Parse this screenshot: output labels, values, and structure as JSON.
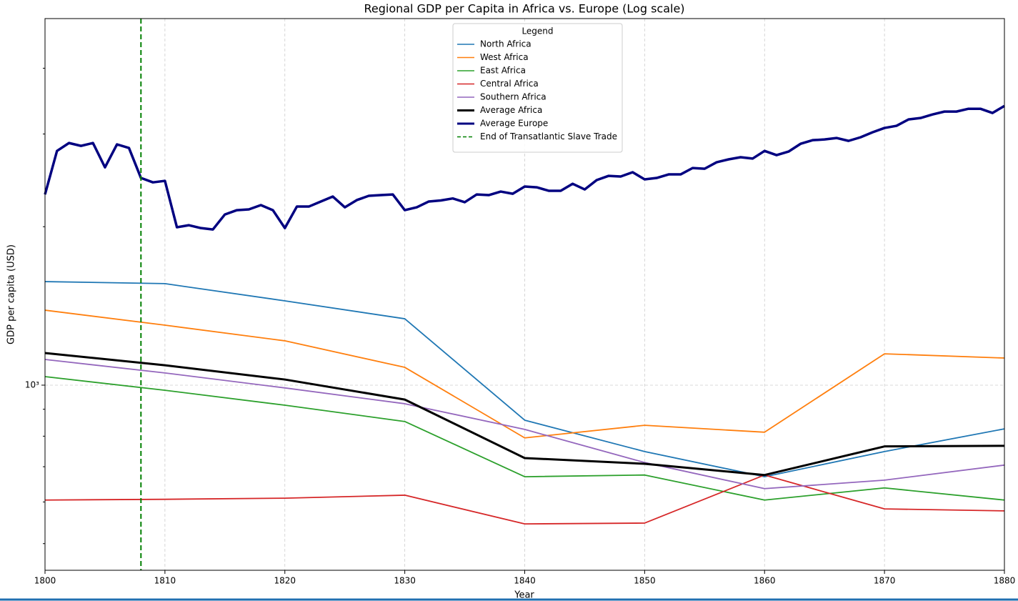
{
  "chart_data": {
    "type": "line",
    "title": "Regional GDP per Capita in Africa vs. Europe (Log scale)",
    "xlabel": "Year",
    "ylabel": "GDP per capita (USD)",
    "xlim": [
      1800,
      1880
    ],
    "xticks": [
      1800,
      1810,
      1820,
      1830,
      1840,
      1850,
      1860,
      1870,
      1880
    ],
    "ylim": [
      445,
      4970
    ],
    "yticks": [
      {
        "value": 1000,
        "label": "10³"
      }
    ],
    "yminor_ticks": [
      500,
      600,
      700,
      800,
      900,
      2000,
      3000,
      4000
    ],
    "log_y": true,
    "grid": true,
    "legend_title": "Legend",
    "legend_position": "upper center",
    "series": [
      {
        "name": "North Africa",
        "color": "#1f77b4",
        "width": 1.8,
        "x": [
          1800,
          1810,
          1820,
          1830,
          1840,
          1850,
          1860,
          1870,
          1880
        ],
        "values": [
          1573,
          1559,
          1446,
          1337,
          858,
          748,
          670,
          748,
          826
        ]
      },
      {
        "name": "West Africa",
        "color": "#ff7f0e",
        "width": 1.8,
        "x": [
          1800,
          1810,
          1820,
          1830,
          1840,
          1850,
          1860,
          1870,
          1880
        ],
        "values": [
          1388,
          1300,
          1214,
          1081,
          794,
          839,
          814,
          1147,
          1126
        ]
      },
      {
        "name": "East Africa",
        "color": "#2ca02c",
        "width": 1.8,
        "x": [
          1800,
          1810,
          1820,
          1830,
          1840,
          1850,
          1860,
          1870,
          1880
        ],
        "values": [
          1038,
          978,
          916,
          853,
          670,
          675,
          605,
          638,
          605
        ]
      },
      {
        "name": "Central Africa",
        "color": "#d62728",
        "width": 1.8,
        "x": [
          1800,
          1810,
          1820,
          1830,
          1840,
          1850,
          1860,
          1870,
          1880
        ],
        "values": [
          605,
          607,
          610,
          618,
          545,
          547,
          675,
          582,
          577
        ]
      },
      {
        "name": "Southern Africa",
        "color": "#9467bd",
        "width": 1.8,
        "x": [
          1800,
          1810,
          1820,
          1830,
          1840,
          1850,
          1860,
          1870,
          1880
        ],
        "values": [
          1119,
          1055,
          988,
          922,
          824,
          713,
          636,
          660,
          705
        ]
      },
      {
        "name": "Average Africa",
        "color": "#000000",
        "width": 3,
        "x": [
          1800,
          1810,
          1820,
          1830,
          1840,
          1850,
          1860,
          1870,
          1880
        ],
        "values": [
          1151,
          1091,
          1025,
          939,
          727,
          709,
          675,
          765,
          767
        ]
      },
      {
        "name": "Average Europe",
        "color": "#000080",
        "width": 3.5,
        "x": [
          1800,
          1801,
          1802,
          1803,
          1804,
          1805,
          1806,
          1807,
          1808,
          1809,
          1810,
          1811,
          1812,
          1813,
          1814,
          1815,
          1816,
          1817,
          1818,
          1819,
          1820,
          1821,
          1822,
          1823,
          1824,
          1825,
          1826,
          1827,
          1828,
          1829,
          1830,
          1831,
          1832,
          1833,
          1834,
          1835,
          1836,
          1837,
          1838,
          1839,
          1840,
          1841,
          1842,
          1843,
          1844,
          1845,
          1846,
          1847,
          1848,
          1849,
          1850,
          1851,
          1852,
          1853,
          1854,
          1855,
          1856,
          1857,
          1858,
          1859,
          1860,
          1861,
          1862,
          1863,
          1864,
          1865,
          1866,
          1867,
          1868,
          1869,
          1870,
          1871,
          1872,
          1873,
          1874,
          1875,
          1876,
          1877,
          1878,
          1879,
          1880
        ],
        "values": [
          2303,
          2786,
          2884,
          2848,
          2884,
          2593,
          2867,
          2822,
          2475,
          2428,
          2444,
          1995,
          2013,
          1988,
          1976,
          2110,
          2150,
          2157,
          2198,
          2150,
          1988,
          2184,
          2184,
          2233,
          2282,
          2177,
          2247,
          2289,
          2296,
          2303,
          2150,
          2177,
          2233,
          2243,
          2263,
          2226,
          2303,
          2296,
          2332,
          2310,
          2384,
          2376,
          2340,
          2340,
          2413,
          2354,
          2452,
          2498,
          2491,
          2538,
          2460,
          2475,
          2514,
          2514,
          2585,
          2577,
          2651,
          2685,
          2710,
          2694,
          2786,
          2735,
          2778,
          2874,
          2920,
          2929,
          2948,
          2911,
          2957,
          3022,
          3080,
          3109,
          3197,
          3217,
          3267,
          3309,
          3309,
          3350,
          3350,
          3289,
          3392
        ]
      }
    ],
    "vlines": [
      {
        "x": 1808,
        "label": "End of Transatlantic Slave Trade",
        "color": "#008000",
        "style": "dashed"
      }
    ]
  }
}
